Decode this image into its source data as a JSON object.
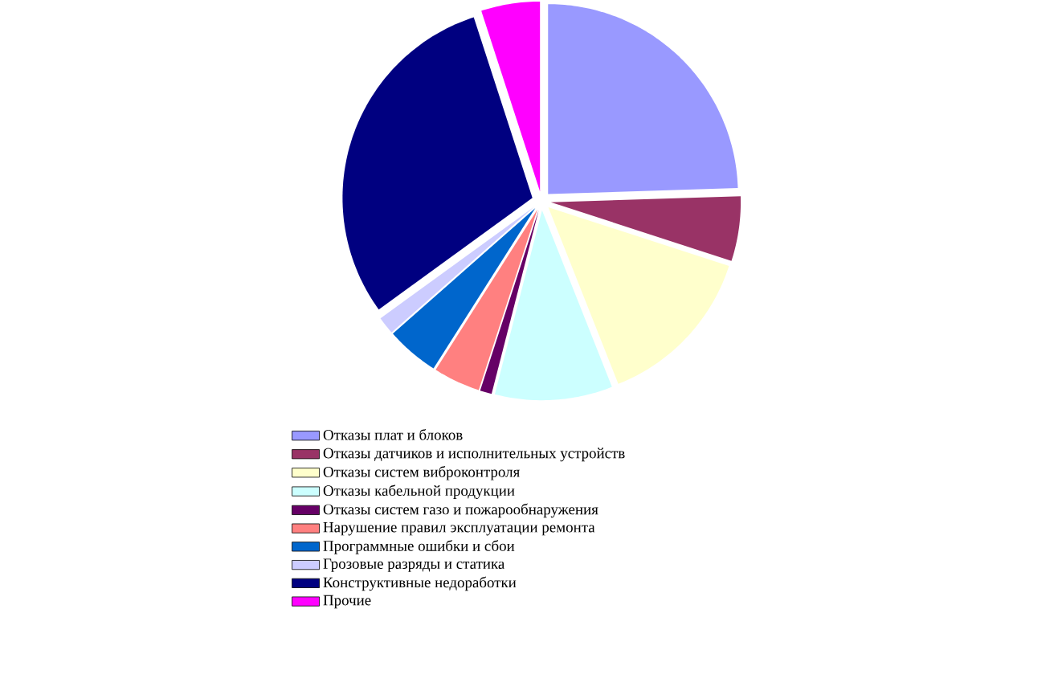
{
  "chart_data": {
    "type": "pie",
    "categories": [
      "Отказы плат и блоков",
      "Отказы датчиков и исполнительных устройств",
      "Отказы систем виброконтроля",
      "Отказы кабельной продукции",
      "Отказы систем газо и пожарообнаружения",
      "Нарушение правил эксплуатации ремонта",
      "Программные ошибки и сбои",
      "Грозовые разряды и статика",
      "Конструктивные недоработки",
      "Прочие"
    ],
    "values": [
      24.5,
      5.5,
      14,
      10,
      1,
      4,
      4.5,
      1.5,
      30,
      5
    ],
    "colors": [
      "#9999ff",
      "#993366",
      "#ffffcc",
      "#ccffff",
      "#660066",
      "#ff8080",
      "#0066cc",
      "#ccccff",
      "#000080",
      "#ff00ff"
    ],
    "legend": "bottom"
  }
}
